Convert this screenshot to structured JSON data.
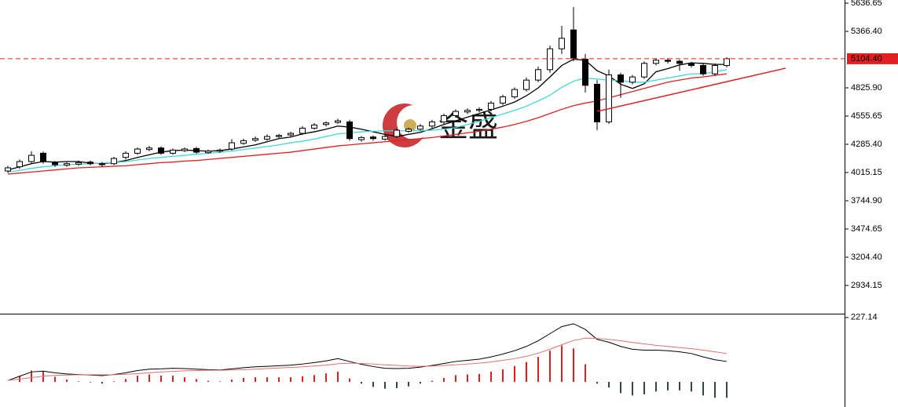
{
  "watermark": "金盛",
  "chart_data": [
    {
      "type": "candlestick",
      "up_color": "#ffffff",
      "down_color": "#000000",
      "open": [
        4030,
        4070,
        4120,
        4200,
        4110,
        4085,
        4095,
        4115,
        4100,
        4100,
        4160,
        4200,
        4235,
        4250,
        4200,
        4225,
        4245,
        4205,
        4220,
        4240,
        4295,
        4325,
        4335,
        4360,
        4375,
        4390,
        4440,
        4475,
        4495,
        4500,
        4330,
        4355,
        4335,
        4360,
        4410,
        4430,
        4460,
        4500,
        4560,
        4595,
        4610,
        4620,
        4680,
        4740,
        4810,
        4900,
        5000,
        5200,
        5380,
        5100,
        4860,
        4500,
        4950,
        4880,
        4930,
        5060,
        5090,
        5080,
        5060,
        5040,
        4960,
        5040
      ],
      "high": [
        4080,
        4140,
        4220,
        4215,
        4125,
        4115,
        4130,
        4130,
        4115,
        4165,
        4220,
        4255,
        4270,
        4265,
        4245,
        4255,
        4260,
        4235,
        4245,
        4335,
        4340,
        4360,
        4380,
        4385,
        4405,
        4460,
        4490,
        4505,
        4530,
        4520,
        4365,
        4370,
        4375,
        4435,
        4445,
        4480,
        4520,
        4580,
        4620,
        4630,
        4640,
        4700,
        4760,
        4830,
        4925,
        5030,
        5230,
        5420,
        5600,
        5150,
        4900,
        5000,
        4970,
        4950,
        5080,
        5110,
        5110,
        5095,
        5075,
        5060,
        5060,
        5120
      ],
      "low": [
        4010,
        4050,
        4100,
        4100,
        4070,
        4070,
        4080,
        4085,
        4070,
        4085,
        4140,
        4185,
        4220,
        4185,
        4185,
        4210,
        4195,
        4195,
        4205,
        4225,
        4280,
        4310,
        4320,
        4345,
        4360,
        4375,
        4425,
        4455,
        4480,
        4320,
        4310,
        4320,
        4320,
        4345,
        4395,
        4415,
        4440,
        4480,
        4540,
        4575,
        4590,
        4600,
        4660,
        4720,
        4790,
        4880,
        4970,
        5150,
        5080,
        4780,
        4420,
        4480,
        4730,
        4860,
        4910,
        5040,
        5060,
        4990,
        5020,
        4940,
        4940,
        5020
      ],
      "close": [
        4060,
        4120,
        4180,
        4120,
        4090,
        4100,
        4110,
        4100,
        4090,
        4150,
        4200,
        4240,
        4250,
        4200,
        4230,
        4240,
        4210,
        4220,
        4230,
        4300,
        4320,
        4340,
        4360,
        4370,
        4390,
        4440,
        4470,
        4490,
        4510,
        4340,
        4350,
        4340,
        4360,
        4420,
        4430,
        4460,
        4500,
        4560,
        4600,
        4610,
        4620,
        4680,
        4740,
        4810,
        4900,
        5000,
        5200,
        5300,
        5110,
        4850,
        4500,
        4950,
        4880,
        4930,
        5060,
        5090,
        5080,
        5060,
        5040,
        4960,
        5040,
        5104.4
      ],
      "lines": [
        {
          "color": "#000000",
          "values": [
            4040,
            4070,
            4100,
            4120,
            4115,
            4120,
            4120,
            4105,
            4100,
            4110,
            4130,
            4160,
            4185,
            4210,
            4225,
            4230,
            4225,
            4220,
            4225,
            4240,
            4260,
            4280,
            4310,
            4340,
            4355,
            4385,
            4405,
            4430,
            4460,
            4450,
            4430,
            4405,
            4380,
            4360,
            4380,
            4400,
            4435,
            4475,
            4510,
            4545,
            4580,
            4615,
            4650,
            4690,
            4750,
            4825,
            4930,
            5040,
            5100,
            5090,
            4990,
            4940,
            4860,
            4820,
            4865,
            4980,
            5010,
            5045,
            5065,
            5060,
            5050,
            5050
          ]
        },
        {
          "color": "#3fd8dc",
          "values": [
            4020,
            4035,
            4055,
            4070,
            4080,
            4090,
            4095,
            4100,
            4105,
            4110,
            4120,
            4135,
            4150,
            4160,
            4170,
            4180,
            4190,
            4200,
            4210,
            4220,
            4235,
            4250,
            4265,
            4280,
            4300,
            4315,
            4335,
            4360,
            4385,
            4395,
            4405,
            4410,
            4415,
            4415,
            4415,
            4415,
            4420,
            4430,
            4445,
            4475,
            4505,
            4540,
            4575,
            4610,
            4650,
            4700,
            4755,
            4830,
            4890,
            4920,
            4910,
            4900,
            4895,
            4880,
            4880,
            4900,
            4920,
            4940,
            4960,
            4960,
            4980,
            5000
          ]
        },
        {
          "color": "#dd2020",
          "values": [
            4000,
            4010,
            4020,
            4030,
            4040,
            4050,
            4060,
            4065,
            4070,
            4075,
            4080,
            4090,
            4100,
            4110,
            4115,
            4125,
            4130,
            4140,
            4150,
            4160,
            4170,
            4180,
            4190,
            4200,
            4210,
            4225,
            4240,
            4255,
            4270,
            4280,
            4290,
            4300,
            4310,
            4320,
            4330,
            4340,
            4350,
            4365,
            4380,
            4395,
            4410,
            4430,
            4450,
            4475,
            4505,
            4540,
            4580,
            4620,
            4655,
            4680,
            4700,
            4730,
            4760,
            4790,
            4820,
            4850,
            4880,
            4900,
            4920,
            4930,
            4945,
            4960
          ]
        }
      ],
      "trendline": {
        "x": [
          50,
          66
        ],
        "values": [
          4600,
          5014
        ],
        "color": "#dd2020"
      },
      "last_price": {
        "value": 5104.4,
        "label": "5104.40"
      },
      "last_price_color": "#e02020",
      "ylim": [
        2663.9,
        5666.7
      ],
      "yticks": [
        5636.65,
        {
          "value": 5366.4,
          "label": "5366.40"
        },
        {
          "value": 4825.9,
          "label": "4825.90"
        },
        4555.65,
        {
          "value": 4285.4,
          "label": "4285.40"
        },
        4015.15,
        {
          "value": 3744.9,
          "label": "3744.90"
        },
        3474.65,
        {
          "value": 3204.4,
          "label": "3204.40"
        },
        2934.15
      ]
    },
    {
      "type": "macd",
      "series": [
        {
          "color": "#000000",
          "values": [
            5,
            20,
            35,
            38,
            32,
            28,
            26,
            24,
            22,
            26,
            32,
            40,
            45,
            46,
            48,
            47,
            45,
            43,
            42,
            46,
            50,
            53,
            55,
            57,
            59,
            63,
            68,
            74,
            82,
            72,
            62,
            54,
            48,
            47,
            48,
            52,
            58,
            65,
            72,
            76,
            80,
            88,
            98,
            110,
            125,
            145,
            170,
            195,
            205,
            185,
            150,
            140,
            125,
            115,
            112,
            112,
            110,
            106,
            100,
            88,
            78,
            72
          ]
        },
        {
          "color": "#e07070",
          "values": [
            5,
            10,
            15,
            20,
            23,
            24,
            25,
            25,
            25,
            25,
            27,
            29,
            32,
            35,
            37,
            39,
            40,
            41,
            41,
            42,
            43,
            45,
            47,
            49,
            51,
            53,
            56,
            59,
            64,
            66,
            65,
            63,
            60,
            58,
            56,
            55,
            56,
            58,
            60,
            63,
            66,
            70,
            76,
            82,
            90,
            101,
            115,
            131,
            146,
            154,
            153,
            150,
            145,
            139,
            134,
            129,
            125,
            121,
            117,
            112,
            106,
            100
          ]
        }
      ],
      "histogram": {
        "up_color": "#e02020",
        "down_color": "#2f4a3c",
        "values": [
          0,
          20,
          40,
          36,
          18,
          8,
          2,
          -2,
          -6,
          2,
          10,
          22,
          26,
          22,
          22,
          16,
          10,
          4,
          2,
          8,
          14,
          16,
          16,
          16,
          16,
          20,
          24,
          30,
          36,
          12,
          -6,
          -18,
          -24,
          -22,
          -16,
          -6,
          4,
          14,
          24,
          26,
          28,
          36,
          44,
          56,
          70,
          88,
          110,
          128,
          118,
          62,
          -6,
          -20,
          -40,
          -48,
          -44,
          -34,
          -30,
          -30,
          -34,
          -48,
          -56,
          -56
        ]
      },
      "ylim": [
        -88.6,
        235
      ],
      "yticks": [
        227.14
      ]
    }
  ]
}
